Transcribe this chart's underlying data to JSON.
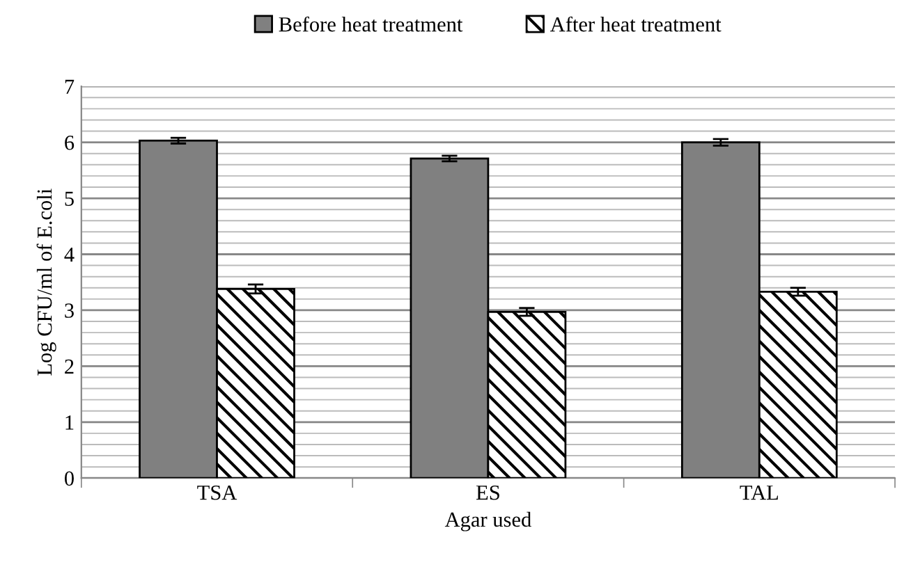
{
  "chart_data": {
    "type": "bar",
    "xlabel": "Agar used",
    "ylabel": "Log CFU/ml of E.coli",
    "categories": [
      "TSA",
      "ES",
      "TAL"
    ],
    "series": [
      {
        "name": "Before heat treatment",
        "color": "#808080",
        "values": [
          6.03,
          5.71,
          6.0
        ],
        "errors": [
          0.05,
          0.05,
          0.06
        ]
      },
      {
        "name": "After heat treatment",
        "color": "#000000",
        "values": [
          3.38,
          2.97,
          3.33
        ],
        "errors": [
          0.08,
          0.07,
          0.07
        ]
      }
    ],
    "ylim": [
      0,
      7
    ],
    "yticks": [
      0,
      1,
      2,
      3,
      4,
      5,
      6,
      7
    ],
    "grid": "y",
    "legend": "top"
  }
}
